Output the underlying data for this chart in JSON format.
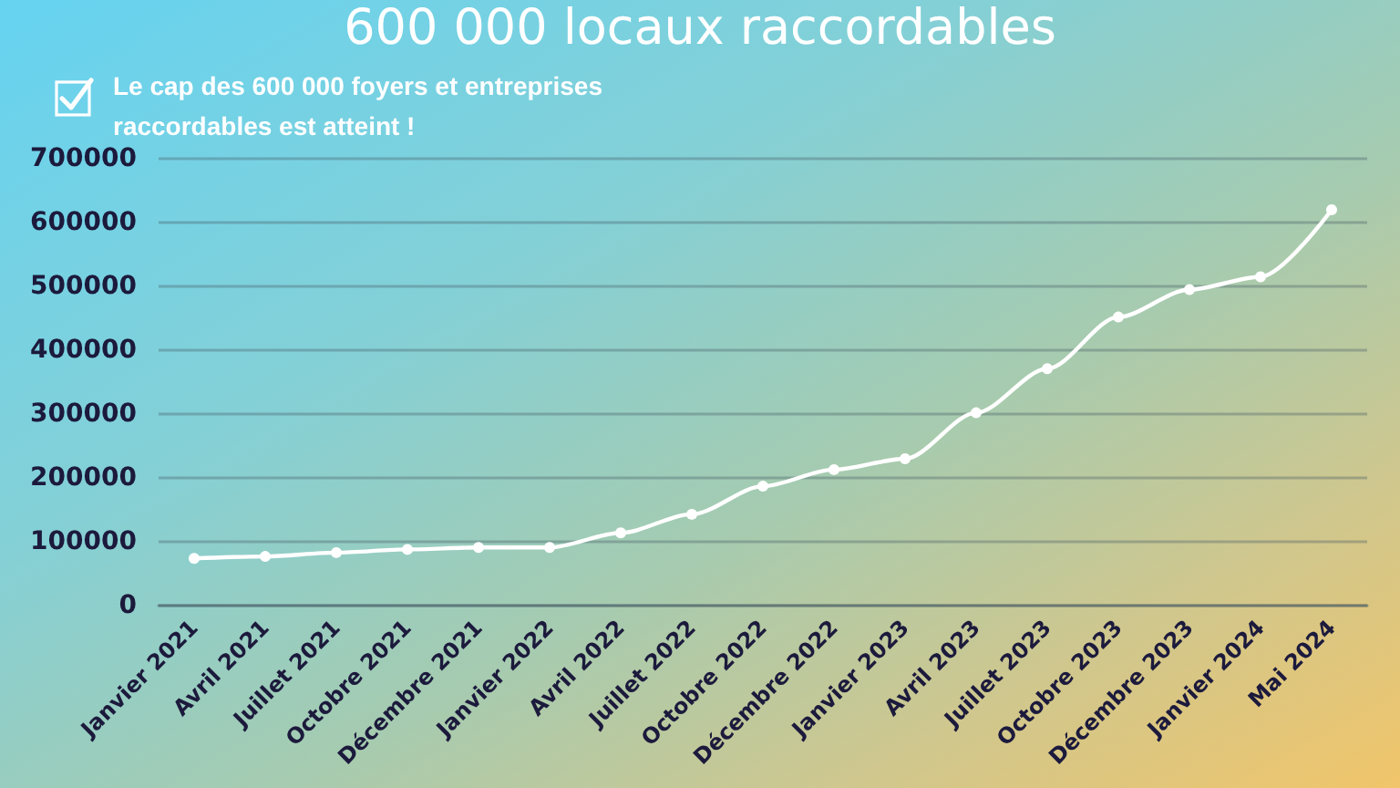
{
  "chart_data": {
    "type": "line",
    "title": "600 000 locaux raccordables",
    "subtitle": "Le cap des 600 000 foyers et entreprises raccordables est atteint !",
    "categories": [
      "Janvier 2021",
      "Avril 2021",
      "Juillet 2021",
      "Octobre 2021",
      "Décembre 2021",
      "Janvier 2022",
      "Avril 2022",
      "Juillet 2022",
      "Octobre 2022",
      "Décembre 2022",
      "Janvier 2023",
      "Avril 2023",
      "Juillet 2023",
      "Octobre 2023",
      "Décembre 2023",
      "Janvier 2024",
      "Mai 2024"
    ],
    "series": [
      {
        "color": "#ffffff",
        "values": [
          74000,
          77000,
          83000,
          88000,
          91000,
          91000,
          114000,
          143000,
          187000,
          213000,
          230000,
          302000,
          371000,
          452000,
          495000,
          515000,
          620000
        ]
      }
    ],
    "ylim": [
      0,
      700000
    ],
    "yticks": [
      0,
      100000,
      200000,
      300000,
      400000,
      500000,
      600000,
      700000
    ],
    "grid": "y",
    "marker": "circle",
    "line_style": "solid"
  }
}
